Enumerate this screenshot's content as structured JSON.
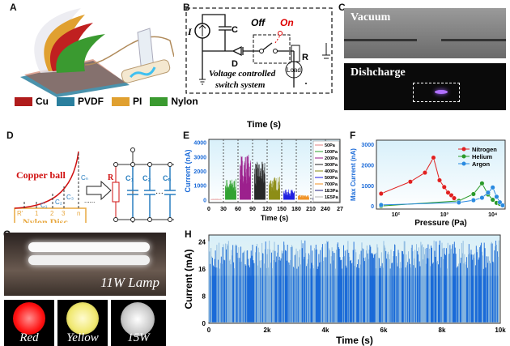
{
  "panels": {
    "a": {
      "label": "A",
      "legend": [
        {
          "name": "Cu",
          "color": "#b01c1c"
        },
        {
          "name": "PVDF",
          "color": "#2a7f9e"
        },
        {
          "name": "PI",
          "color": "#e0a030"
        },
        {
          "name": "Nylon",
          "color": "#3a9a30"
        }
      ]
    },
    "b": {
      "label": "B",
      "I": "I",
      "C": "C",
      "D": "D",
      "off": "Off",
      "on": "On",
      "R": "R",
      "load": "Load",
      "caption_line1": "Voltage controlled",
      "caption_line2": "switch system"
    },
    "c": {
      "label": "C",
      "top_caption": "Vacuum",
      "bottom_caption": "Dishcharge"
    },
    "stray_label": "Time (s)",
    "d": {
      "label": "D",
      "copper": "Copper ball",
      "nylon": "Nylon Disc",
      "r_label": "R'",
      "positions": [
        "1",
        "2",
        "3",
        "n"
      ],
      "caps_left": [
        "C₁",
        "C₂",
        "C₃",
        "Cₙ"
      ],
      "R": "R",
      "caps_right": [
        "C₁",
        "C₂",
        "Cₙ"
      ],
      "dots": "......",
      "mid_dots": "···"
    },
    "e": {
      "label": "E"
    },
    "f": {
      "label": "F"
    },
    "g": {
      "label": "G",
      "lamp": "11W Lamp",
      "balls": [
        {
          "label": "Red",
          "color": "#ff2020"
        },
        {
          "label": "Yellow",
          "color": "#f6f08a"
        },
        {
          "label": "15W",
          "color": "#d8d8d8"
        }
      ]
    },
    "h": {
      "label": "H"
    }
  },
  "chart_data": [
    {
      "panel": "E",
      "type": "bar",
      "xlabel": "Time (s)",
      "ylabel": "Current (nA)",
      "xlim": [
        0,
        270
      ],
      "ylim": [
        -200,
        4200
      ],
      "xticks": [
        "0",
        "30",
        "60",
        "90",
        "120",
        "150",
        "180",
        "210",
        "240",
        "27"
      ],
      "yticks": [
        0,
        1000,
        2000,
        3000,
        4000
      ],
      "legend_placement": "top-right",
      "series": [
        {
          "name": "50Pa",
          "range": [
            0,
            30
          ],
          "peak": 50,
          "color": "#e08080"
        },
        {
          "name": "100Pa",
          "range": [
            30,
            60
          ],
          "peak": 1450,
          "color": "#2ca02c"
        },
        {
          "name": "200Pa",
          "range": [
            60,
            90
          ],
          "peak": 3200,
          "color": "#9a1a8a"
        },
        {
          "name": "300Pa",
          "range": [
            90,
            120
          ],
          "peak": 2650,
          "color": "#222222"
        },
        {
          "name": "400Pa",
          "range": [
            120,
            150
          ],
          "peak": 1600,
          "color": "#8a8a10"
        },
        {
          "name": "500Pa",
          "range": [
            150,
            180
          ],
          "peak": 720,
          "color": "#1a1ae0"
        },
        {
          "name": "700Pa",
          "range": [
            180,
            210
          ],
          "peak": 330,
          "color": "#f09020"
        },
        {
          "name": "1E3Pa",
          "range": [
            210,
            240
          ],
          "peak": 150,
          "color": "#202080"
        },
        {
          "name": "1E5Pa",
          "range": [
            240,
            270
          ],
          "peak": 30,
          "color": "#b0b0b0"
        }
      ]
    },
    {
      "panel": "F",
      "type": "line",
      "xlabel": "Pressure (Pa)",
      "ylabel": "Max Current (nA)",
      "xscale": "log",
      "xlim": [
        40,
        18000
      ],
      "ylim": [
        -150,
        3200
      ],
      "xticks": [
        "10²",
        "10³",
        "10⁴"
      ],
      "yticks": [
        0,
        1000,
        2000,
        3000
      ],
      "legend_placement": "top-right",
      "series": [
        {
          "name": "Nitrogen",
          "color": "#e02020",
          "x": [
            50,
            200,
            400,
            600,
            800,
            1000,
            1200,
            1400,
            1600
          ],
          "y": [
            600,
            1180,
            1620,
            2350,
            1250,
            920,
            650,
            520,
            380
          ]
        },
        {
          "name": "Helium",
          "color": "#2a9a2a",
          "x": [
            50,
            2000,
            4000,
            6000,
            8000,
            10000,
            12000,
            14000,
            16000
          ],
          "y": [
            0,
            250,
            580,
            1100,
            560,
            300,
            150,
            100,
            30
          ]
        },
        {
          "name": "Argon",
          "color": "#2a8ae0",
          "x": [
            50,
            2000,
            4000,
            6000,
            8000,
            10000,
            12000,
            14000,
            16000
          ],
          "y": [
            50,
            170,
            280,
            400,
            650,
            900,
            450,
            180,
            30
          ]
        }
      ]
    },
    {
      "panel": "H",
      "type": "bar",
      "xlabel": "Time (s)",
      "ylabel": "Current (mA)",
      "xlim": [
        0,
        10000
      ],
      "ylim": [
        0,
        26
      ],
      "xticks": [
        "0",
        "2k",
        "4k",
        "6k",
        "8k",
        "10k"
      ],
      "yticks": [
        "0",
        "8",
        "16",
        "24"
      ],
      "peak_range": [
        16,
        24.5
      ],
      "color": "#1a6ad8"
    }
  ]
}
